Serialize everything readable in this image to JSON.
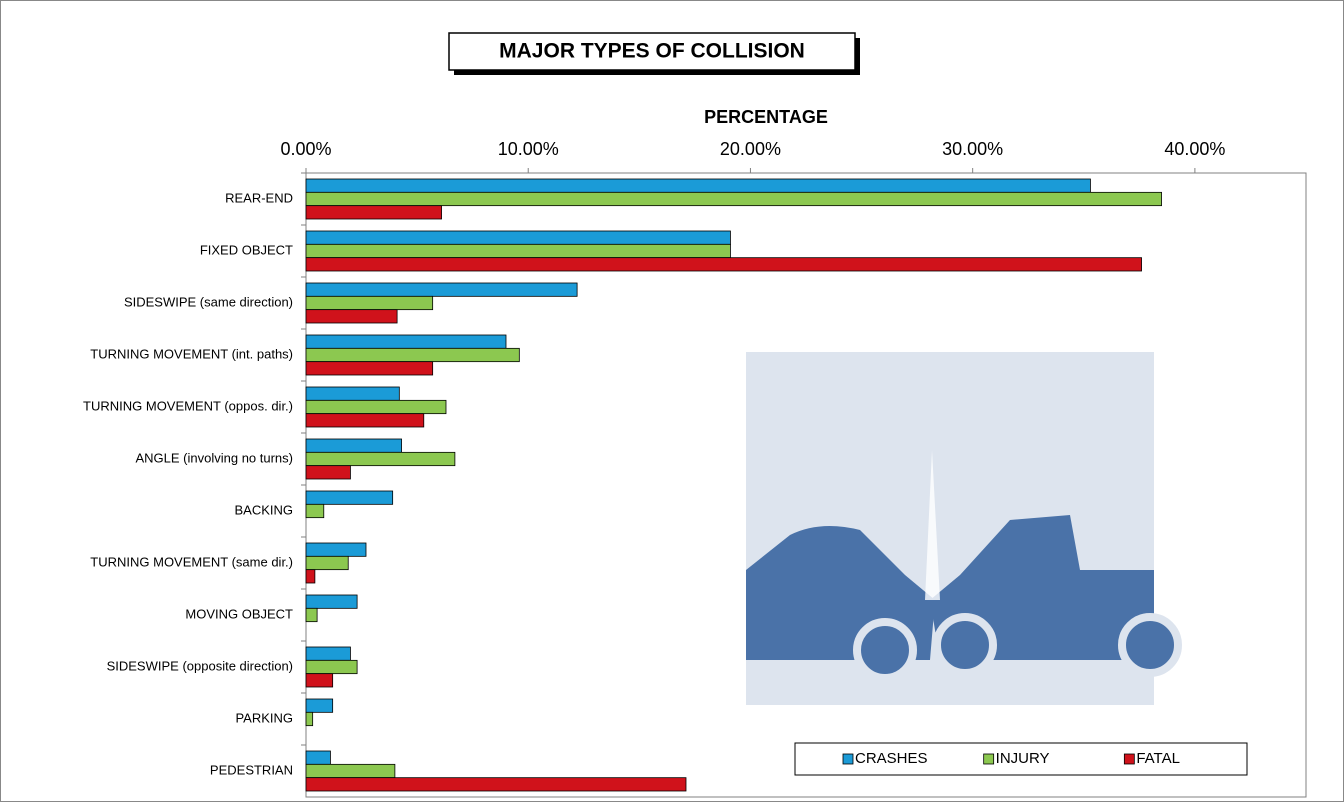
{
  "chart_data": {
    "type": "bar",
    "orientation": "horizontal",
    "title": "MAJOR TYPES OF COLLISION",
    "x_label": "PERCENTAGE",
    "categories": [
      "REAR-END",
      "FIXED OBJECT",
      "SIDESWIPE (same direction)",
      "TURNING MOVEMENT (int. paths)",
      "TURNING MOVEMENT (oppos. dir.)",
      "ANGLE (involving no turns)",
      "BACKING",
      "TURNING MOVEMENT (same dir.)",
      "MOVING OBJECT",
      "SIDESWIPE (opposite direction)",
      "PARKING",
      "PEDESTRIAN"
    ],
    "series": [
      {
        "name": "CRASHES",
        "color": "#1b9bd7",
        "values": [
          35.3,
          19.1,
          12.2,
          9.0,
          4.2,
          4.3,
          3.9,
          2.7,
          2.3,
          2.0,
          1.2,
          1.1
        ]
      },
      {
        "name": "INJURY",
        "color": "#8cc850",
        "values": [
          38.5,
          19.1,
          5.7,
          9.6,
          6.3,
          6.7,
          0.8,
          1.9,
          0.5,
          2.3,
          0.3,
          4.0
        ]
      },
      {
        "name": "FATAL",
        "color": "#d0121b",
        "values": [
          6.1,
          37.6,
          4.1,
          5.7,
          5.3,
          2.0,
          null,
          0.4,
          null,
          1.2,
          null,
          17.1
        ]
      }
    ],
    "xlim": [
      0,
      45
    ],
    "xticks": [
      {
        "value": 0,
        "label": "0.00%"
      },
      {
        "value": 10,
        "label": "10.00%"
      },
      {
        "value": 20,
        "label": "20.00%"
      },
      {
        "value": 30,
        "label": "30.00%"
      },
      {
        "value": 40,
        "label": "40.00%"
      }
    ],
    "legend": "lower right"
  }
}
